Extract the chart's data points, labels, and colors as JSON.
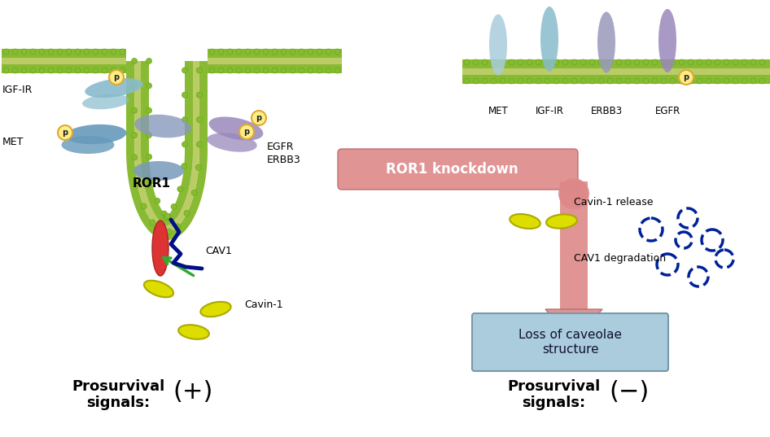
{
  "bg_color": "#ffffff",
  "mc": "#88bb33",
  "mic": "#bbcc66",
  "mc2": "#99cc44",
  "p_fill": "#ffee88",
  "p_edge": "#ddaa33",
  "cavin_fill": "#dddd00",
  "cavin_edge": "#aaaa00",
  "cav1_red": "#dd3333",
  "cav1_blue": "#001188",
  "green_arr": "#33aa33",
  "pink_arr": "#dd8888",
  "pink_arr_edge": "#bb6666",
  "box_fill": "#aaccdd",
  "box_edge": "#7799aa",
  "dashed_blue": "#002299",
  "igfir_fill": "#88bbcc",
  "met_fill": "#6699bb",
  "ror1_fill": "#8899bb",
  "egfr_fill": "#9988bb",
  "erbb3_fill": "#99aacc",
  "labels": {
    "igfir": "IGF-IR",
    "met": "MET",
    "ror1": "ROR1",
    "egfr": "EGFR",
    "erbb3": "ERBB3",
    "cav1": "CAV1",
    "cavin": "Cavin-1",
    "ror1kd": "ROR1 knockdown",
    "cavin_release": "Cavin-1 release",
    "cav1_deg": "CAV1 degradation",
    "loss_cav": "Loss of caveolae\nstructure",
    "pro_plus": "Prosurvival\nsignals:",
    "plus": "(+)",
    "pro_minus": "Prosurvival\nsignals:",
    "minus": "(−)"
  }
}
